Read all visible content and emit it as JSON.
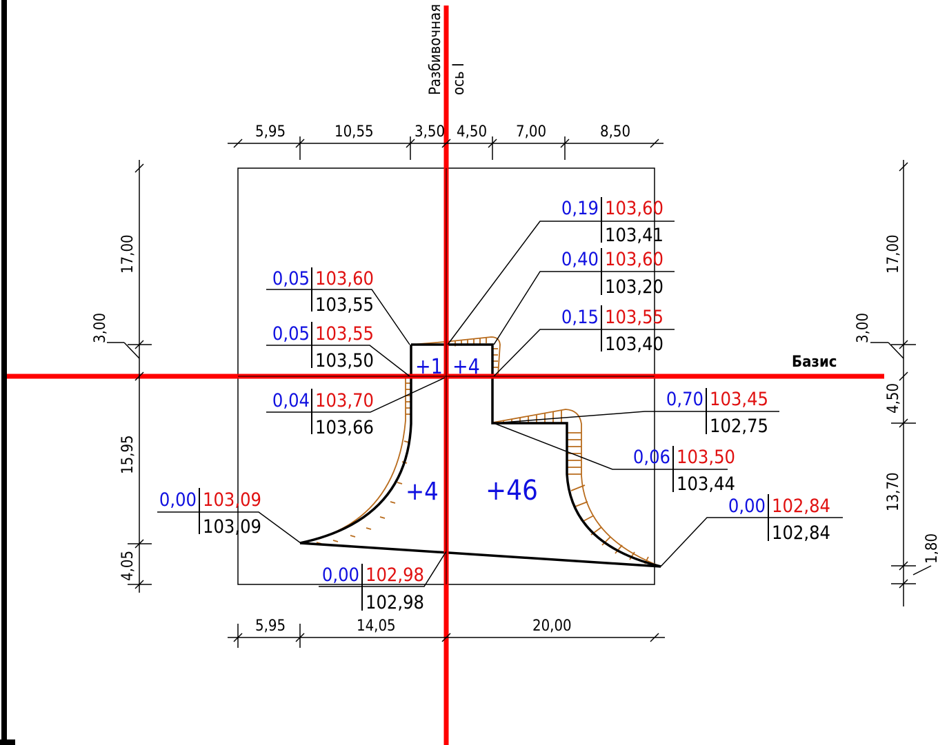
{
  "axes": {
    "staking_axis_label_line1": "Разбивочная",
    "staking_axis_label_line2": "ось I",
    "basis_label": "Базис",
    "axis_color": "#ff0000"
  },
  "colors": {
    "working_mark": "#1010e0",
    "design_mark": "#e01010",
    "natural_mark": "#000000",
    "slope_hatch": "#b86b1c"
  },
  "top_dims": [
    "5,95",
    "10,55",
    "3,50",
    "4,50",
    "7,00",
    "8,50"
  ],
  "bottom_dims": [
    "5,95",
    "14,05",
    "20,00"
  ],
  "left_dims": [
    "17,00",
    "3,00",
    "15,95",
    "4,05"
  ],
  "right_dims": [
    "17,00",
    "3,00",
    "4,50",
    "13,70",
    "1,80"
  ],
  "areas": [
    "+1",
    "+4",
    "+4",
    "+46"
  ],
  "marks": [
    {
      "work": "0,19",
      "design": "103,60",
      "natural": "103,41"
    },
    {
      "work": "0,40",
      "design": "103,60",
      "natural": "103,20"
    },
    {
      "work": "0,15",
      "design": "103,55",
      "natural": "103,40"
    },
    {
      "work": "0,05",
      "design": "103,60",
      "natural": "103,55"
    },
    {
      "work": "0,05",
      "design": "103,55",
      "natural": "103,50"
    },
    {
      "work": "0,04",
      "design": "103,70",
      "natural": "103,66"
    },
    {
      "work": "0,70",
      "design": "103,45",
      "natural": "102,75"
    },
    {
      "work": "0,06",
      "design": "103,50",
      "natural": "103,44"
    },
    {
      "work": "0,00",
      "design": "103,09",
      "natural": "103,09"
    },
    {
      "work": "0,00",
      "design": "102,84",
      "natural": "102,84"
    },
    {
      "work": "0,00",
      "design": "102,98",
      "natural": "102,98"
    }
  ]
}
